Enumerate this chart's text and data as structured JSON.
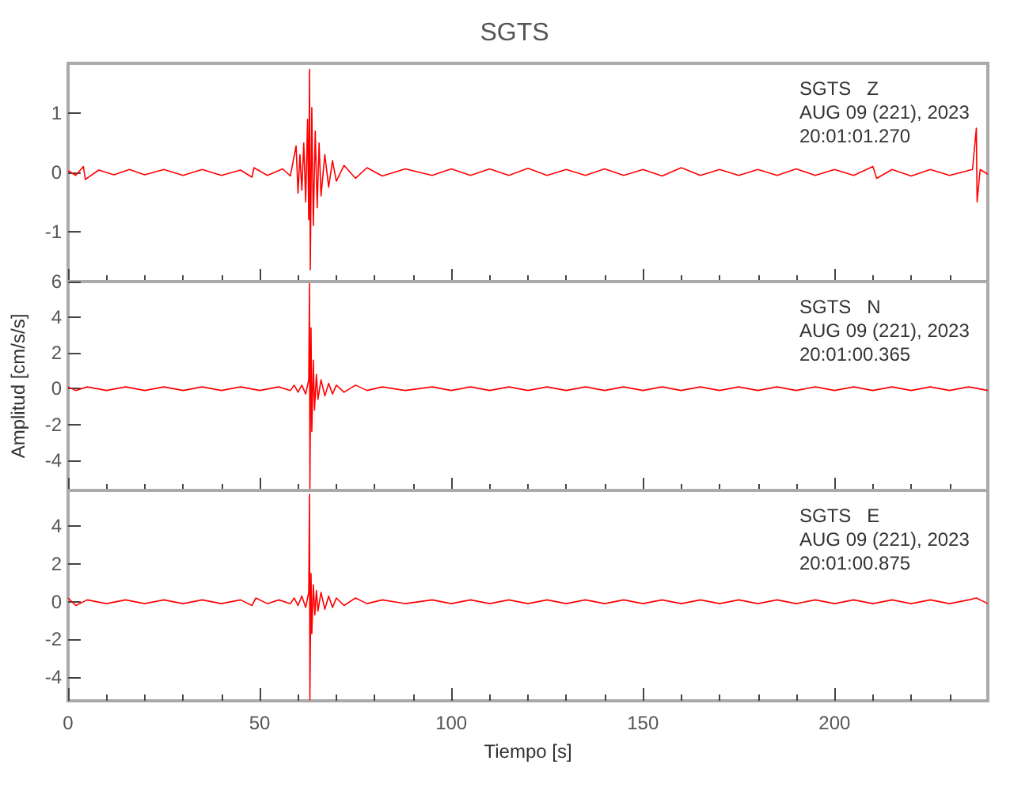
{
  "chart_data": [
    {
      "type": "line",
      "title": "SGTS",
      "annotations": [
        "SGTS   Z",
        "AUG 09 (221), 2023",
        "20:01:01.270"
      ],
      "xlim": [
        0,
        240
      ],
      "xticks": [
        0,
        50,
        100,
        150,
        200
      ],
      "ylim": [
        -1.85,
        1.85
      ],
      "yticks": [
        -1,
        0,
        1
      ],
      "tick_labels": "y",
      "grid": false,
      "marker": "none",
      "series": [
        {
          "color": "#ff0000",
          "x": [
            0,
            2,
            4,
            4.5,
            8,
            12,
            16,
            20,
            25,
            30,
            35,
            40,
            45,
            48,
            48.5,
            52,
            56,
            58,
            59.5,
            60,
            60.5,
            61,
            61.5,
            62,
            62.5,
            62.8,
            63,
            63.2,
            63.6,
            64,
            64.5,
            65,
            65.5,
            66,
            67,
            68,
            69,
            70,
            72,
            75,
            78,
            82,
            88,
            95,
            100,
            105,
            110,
            115,
            120,
            125,
            130,
            135,
            140,
            145,
            150,
            155,
            160,
            165,
            170,
            175,
            180,
            185,
            190,
            195,
            200,
            205,
            210,
            211,
            215,
            220,
            225,
            230,
            236,
            237,
            237.2,
            238,
            240
          ],
          "values": [
            0.03,
            -0.05,
            0.1,
            -0.12,
            0.04,
            -0.04,
            0.05,
            -0.04,
            0.05,
            -0.05,
            0.05,
            -0.05,
            0.04,
            -0.08,
            0.08,
            -0.05,
            0.06,
            -0.06,
            0.45,
            -0.35,
            0.3,
            -0.3,
            0.5,
            -0.5,
            0.9,
            -0.8,
            1.75,
            -1.65,
            1.1,
            -0.9,
            0.7,
            -0.6,
            0.5,
            -0.4,
            0.3,
            -0.25,
            0.2,
            -0.15,
            0.12,
            -0.1,
            0.08,
            -0.06,
            0.06,
            -0.05,
            0.06,
            -0.05,
            0.06,
            -0.05,
            0.07,
            -0.05,
            0.05,
            -0.05,
            0.06,
            -0.05,
            0.05,
            -0.06,
            0.08,
            -0.05,
            0.05,
            -0.05,
            0.05,
            -0.05,
            0.06,
            -0.05,
            0.05,
            -0.05,
            0.1,
            -0.1,
            0.05,
            -0.06,
            0.05,
            -0.05,
            0.05,
            0.75,
            -0.5,
            0.05,
            -0.03
          ]
        }
      ]
    },
    {
      "type": "line",
      "ylabel": "Amplitud [cm/s/s]",
      "annotations": [
        "SGTS   N",
        "AUG 09 (221), 2023",
        "20:01:00.365"
      ],
      "xlim": [
        0,
        240
      ],
      "xticks": [
        0,
        50,
        100,
        150,
        200
      ],
      "ylim": [
        -5.7,
        6
      ],
      "yticks": [
        -4,
        -2,
        0,
        2,
        4,
        6
      ],
      "tick_labels": "y",
      "grid": false,
      "marker": "none",
      "series": [
        {
          "color": "#ff0000",
          "x": [
            0,
            2,
            5,
            10,
            15,
            20,
            25,
            30,
            35,
            40,
            45,
            50,
            55,
            58,
            59,
            60,
            61,
            62,
            62.8,
            63,
            63.1,
            63.4,
            63.6,
            64,
            64.3,
            64.8,
            65.2,
            66,
            67,
            68,
            69,
            70,
            72,
            75,
            78,
            82,
            88,
            95,
            100,
            105,
            110,
            115,
            120,
            125,
            130,
            135,
            140,
            145,
            150,
            155,
            160,
            165,
            170,
            175,
            180,
            185,
            190,
            195,
            200,
            205,
            210,
            215,
            220,
            225,
            230,
            235,
            240
          ],
          "values": [
            0.1,
            -0.1,
            0.1,
            -0.1,
            0.1,
            -0.1,
            0.1,
            -0.1,
            0.1,
            -0.1,
            0.1,
            -0.1,
            0.1,
            -0.1,
            0.2,
            -0.2,
            0.2,
            -0.3,
            0.5,
            5.9,
            -5.6,
            3.4,
            -2.4,
            1.6,
            -1.2,
            0.8,
            -0.6,
            0.5,
            -0.4,
            0.3,
            -0.3,
            0.2,
            -0.2,
            0.2,
            -0.1,
            0.1,
            -0.1,
            0.1,
            -0.1,
            0.1,
            -0.1,
            0.1,
            -0.1,
            0.1,
            -0.1,
            0.1,
            -0.1,
            0.1,
            -0.1,
            0.1,
            -0.1,
            0.1,
            -0.1,
            0.1,
            -0.1,
            0.1,
            -0.1,
            0.1,
            -0.1,
            0.1,
            -0.1,
            0.1,
            -0.1,
            0.1,
            -0.1,
            0.1,
            -0.1
          ]
        }
      ]
    },
    {
      "type": "line",
      "xlabel": "Tiempo [s]",
      "annotations": [
        "SGTS   E",
        "AUG 09 (221), 2023",
        "20:01:00.875"
      ],
      "xlim": [
        0,
        240
      ],
      "xticks": [
        0,
        50,
        100,
        150,
        200
      ],
      "ylim": [
        -5.25,
        5.9
      ],
      "yticks": [
        -4,
        -2,
        0,
        2,
        4
      ],
      "grid": false,
      "marker": "none",
      "series": [
        {
          "color": "#ff0000",
          "x": [
            0,
            2,
            5,
            10,
            15,
            20,
            25,
            30,
            35,
            40,
            45,
            48,
            49,
            52,
            55,
            58,
            59,
            60,
            61,
            62,
            62.8,
            63,
            63.1,
            63.4,
            63.6,
            64,
            64.4,
            64.8,
            65.2,
            66,
            67,
            68,
            69,
            70,
            72,
            75,
            78,
            82,
            88,
            95,
            100,
            105,
            110,
            115,
            120,
            125,
            130,
            135,
            140,
            145,
            150,
            155,
            160,
            165,
            170,
            175,
            180,
            185,
            190,
            195,
            200,
            205,
            210,
            215,
            220,
            225,
            230,
            235,
            237,
            240
          ],
          "values": [
            0.2,
            -0.2,
            0.1,
            -0.1,
            0.1,
            -0.1,
            0.1,
            -0.1,
            0.1,
            -0.1,
            0.1,
            -0.2,
            0.2,
            -0.1,
            0.1,
            -0.1,
            0.2,
            -0.2,
            0.3,
            -0.3,
            0.5,
            5.7,
            -5.2,
            1.5,
            -1.7,
            0.9,
            -0.7,
            0.6,
            -0.5,
            0.5,
            -0.4,
            0.3,
            -0.3,
            0.2,
            -0.2,
            0.2,
            -0.1,
            0.1,
            -0.1,
            0.1,
            -0.1,
            0.1,
            -0.1,
            0.1,
            -0.1,
            0.1,
            -0.1,
            0.1,
            -0.1,
            0.1,
            -0.1,
            0.1,
            -0.1,
            0.1,
            -0.1,
            0.1,
            -0.1,
            0.1,
            -0.1,
            0.1,
            -0.1,
            0.1,
            -0.1,
            0.1,
            -0.1,
            0.1,
            -0.1,
            0.1,
            0.2,
            -0.1
          ]
        }
      ]
    }
  ]
}
